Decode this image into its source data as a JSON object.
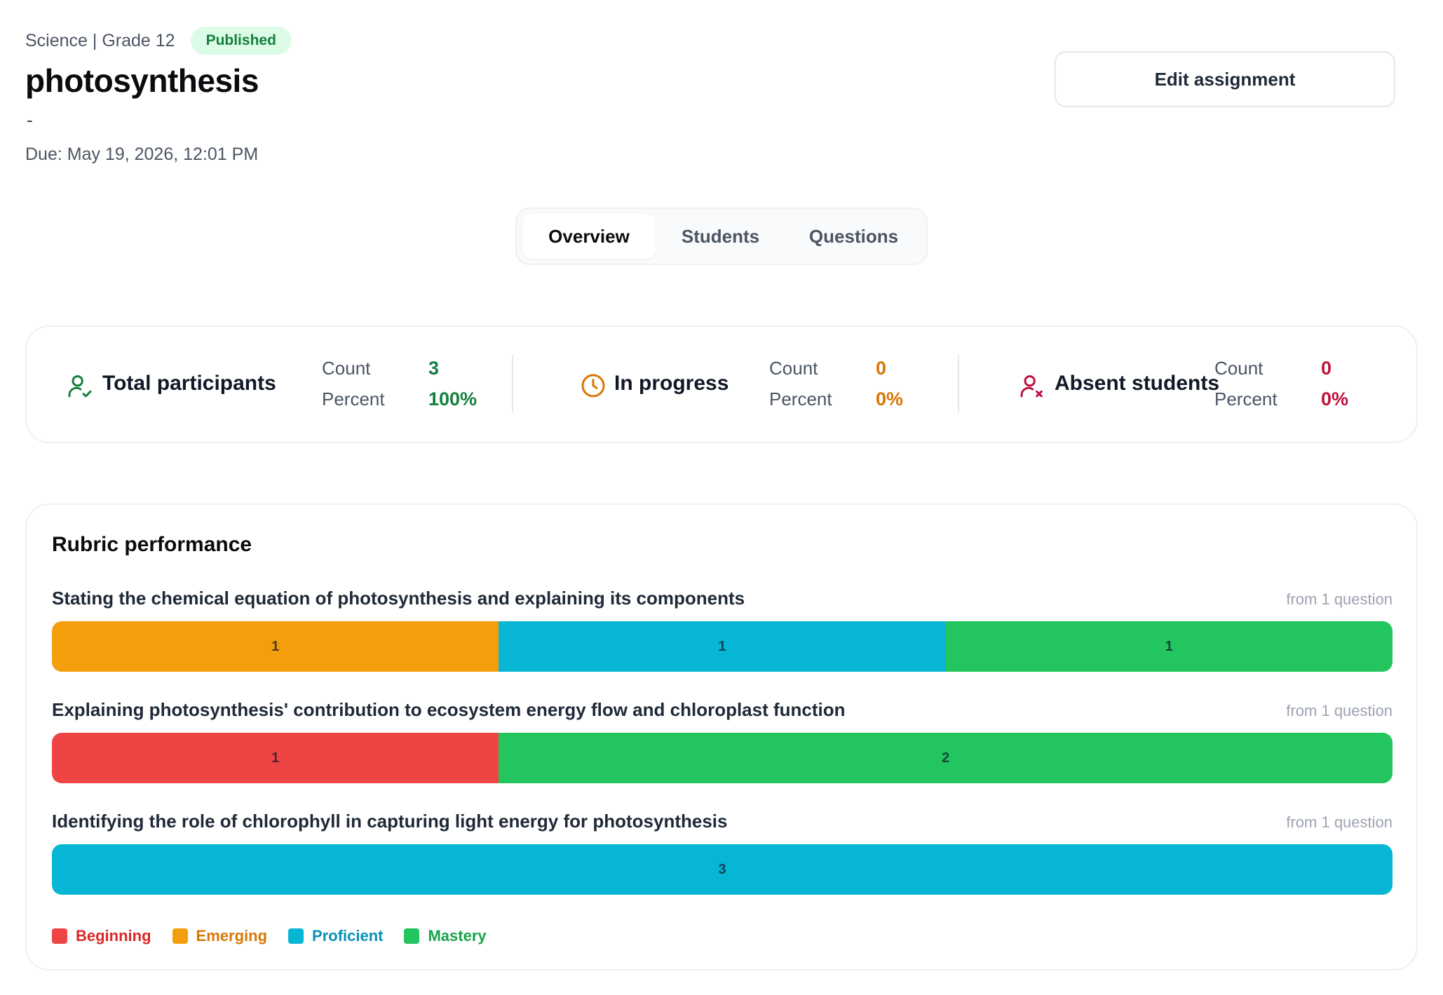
{
  "header": {
    "subject": "Science | Grade 12",
    "status": "Published",
    "title": "photosynthesis",
    "description": "-",
    "due": "Due: May 19, 2026, 12:01 PM",
    "edit_label": "Edit assignment"
  },
  "tabs": [
    {
      "label": "Overview",
      "active": true
    },
    {
      "label": "Students",
      "active": false
    },
    {
      "label": "Questions",
      "active": false
    }
  ],
  "stats": [
    {
      "label": "Total participants",
      "icon": "user-check-icon",
      "count_label": "Count",
      "count": "3",
      "percent_label": "Percent",
      "percent": "100%",
      "color": "#15803d"
    },
    {
      "label": "In progress",
      "icon": "clock-icon",
      "count_label": "Count",
      "count": "0",
      "percent_label": "Percent",
      "percent": "0%",
      "color": "#d97706"
    },
    {
      "label": "Absent students",
      "icon": "user-x-icon",
      "count_label": "Count",
      "count": "0",
      "percent_label": "Percent",
      "percent": "0%",
      "color": "#be123c"
    }
  ],
  "rubric": {
    "title": "Rubric performance",
    "levels": [
      {
        "name": "Beginning",
        "color": "#ef4444",
        "text_color": "#dc2626"
      },
      {
        "name": "Emerging",
        "color": "#f59e0b",
        "text_color": "#d97706"
      },
      {
        "name": "Proficient",
        "color": "#06b6d4",
        "text_color": "#0891b2"
      },
      {
        "name": "Mastery",
        "color": "#22c55e",
        "text_color": "#16a34a"
      }
    ],
    "criteria": [
      {
        "title": "Stating the chemical equation of photosynthesis and explaining its components",
        "note": "from 1 question",
        "segments": [
          {
            "level": "Emerging",
            "count": 1
          },
          {
            "level": "Proficient",
            "count": 1
          },
          {
            "level": "Mastery",
            "count": 1
          }
        ]
      },
      {
        "title": "Explaining photosynthesis' contribution to ecosystem energy flow and chloroplast function",
        "note": "from 1 question",
        "segments": [
          {
            "level": "Beginning",
            "count": 1
          },
          {
            "level": "Mastery",
            "count": 2
          }
        ]
      },
      {
        "title": "Identifying the role of chlorophyll in capturing light energy for photosynthesis",
        "note": "from 1 question",
        "segments": [
          {
            "level": "Proficient",
            "count": 3
          }
        ]
      }
    ]
  }
}
